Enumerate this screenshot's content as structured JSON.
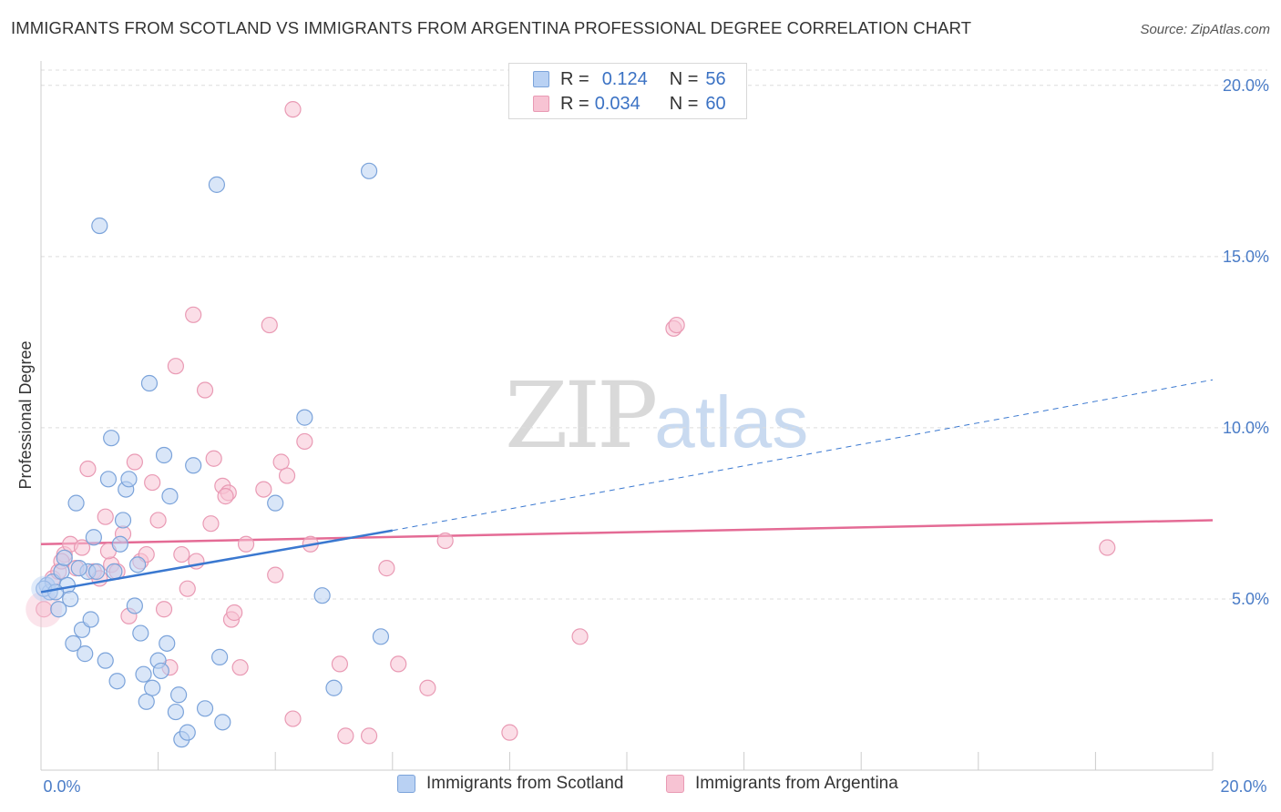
{
  "header": {
    "title": "IMMIGRANTS FROM SCOTLAND VS IMMIGRANTS FROM ARGENTINA PROFESSIONAL DEGREE CORRELATION CHART",
    "source": "Source: ZipAtlas.com"
  },
  "watermark": {
    "part1": "ZIP",
    "part2": "atlas"
  },
  "legend": {
    "scotland": {
      "r_label": "R =",
      "r_value": "0.124",
      "n_label": "N =",
      "n_value": "56"
    },
    "argentina": {
      "r_label": "R =",
      "r_value": "0.034",
      "n_label": "N =",
      "n_value": "60"
    }
  },
  "bottom_legend": {
    "scotland": "Immigrants from Scotland",
    "argentina": "Immigrants from Argentina"
  },
  "colors": {
    "scotland_fill": "#b9d1f3",
    "scotland_stroke": "#7ba3da",
    "scotland_line": "#3a78d0",
    "argentina_fill": "#f7c3d3",
    "argentina_stroke": "#e99ab4",
    "argentina_line": "#e46b95",
    "tick_label": "#4a7cc7",
    "grid": "#dddddd"
  },
  "chart_data": {
    "type": "scatter",
    "title": "IMMIGRANTS FROM SCOTLAND VS IMMIGRANTS FROM ARGENTINA PROFESSIONAL DEGREE CORRELATION CHART",
    "xlabel": "",
    "ylabel": "Professional Degree",
    "xlim": [
      0,
      20
    ],
    "ylim": [
      0,
      20.5
    ],
    "x_tick_labels": [
      "0.0%",
      "20.0%"
    ],
    "y_ticks": [
      5,
      10,
      15,
      20
    ],
    "y_tick_labels": [
      "5.0%",
      "10.0%",
      "15.0%",
      "20.0%"
    ],
    "grid": true,
    "legend_position": "top-center",
    "series": [
      {
        "name": "Immigrants from Scotland",
        "R": 0.124,
        "N": 56,
        "trend": {
          "x": [
            0,
            6
          ],
          "y": [
            5.2,
            7.0
          ],
          "dashed_extension": {
            "x": [
              6,
              20
            ],
            "y": [
              7.0,
              11.4
            ]
          }
        },
        "points": [
          [
            0.1,
            5.4
          ],
          [
            0.15,
            5.2
          ],
          [
            0.2,
            5.5
          ],
          [
            0.3,
            4.7
          ],
          [
            0.35,
            5.8
          ],
          [
            0.4,
            6.2
          ],
          [
            0.45,
            5.4
          ],
          [
            0.5,
            5.0
          ],
          [
            0.55,
            3.7
          ],
          [
            0.6,
            7.8
          ],
          [
            0.7,
            4.1
          ],
          [
            0.75,
            3.4
          ],
          [
            0.8,
            5.8
          ],
          [
            0.85,
            4.4
          ],
          [
            0.9,
            6.8
          ],
          [
            0.95,
            5.8
          ],
          [
            1.0,
            15.9
          ],
          [
            1.1,
            3.2
          ],
          [
            1.15,
            8.5
          ],
          [
            1.2,
            9.7
          ],
          [
            1.3,
            2.6
          ],
          [
            1.35,
            6.6
          ],
          [
            1.4,
            7.3
          ],
          [
            1.45,
            8.2
          ],
          [
            1.5,
            8.5
          ],
          [
            1.6,
            4.8
          ],
          [
            1.65,
            6.0
          ],
          [
            1.7,
            4.0
          ],
          [
            1.75,
            2.8
          ],
          [
            1.8,
            2.0
          ],
          [
            1.85,
            11.3
          ],
          [
            1.9,
            2.4
          ],
          [
            2.0,
            3.2
          ],
          [
            2.05,
            2.9
          ],
          [
            2.1,
            9.2
          ],
          [
            2.15,
            3.7
          ],
          [
            2.2,
            8.0
          ],
          [
            2.3,
            1.7
          ],
          [
            2.35,
            2.2
          ],
          [
            2.4,
            0.9
          ],
          [
            2.5,
            1.1
          ],
          [
            2.6,
            8.9
          ],
          [
            2.8,
            1.8
          ],
          [
            3.0,
            17.1
          ],
          [
            3.05,
            3.3
          ],
          [
            3.1,
            1.4
          ],
          [
            4.0,
            7.8
          ],
          [
            4.5,
            10.3
          ],
          [
            4.8,
            5.1
          ],
          [
            5.0,
            2.4
          ],
          [
            5.6,
            17.5
          ],
          [
            5.8,
            3.9
          ],
          [
            0.05,
            5.3
          ],
          [
            0.25,
            5.2
          ],
          [
            1.25,
            5.8
          ],
          [
            0.65,
            5.9
          ]
        ]
      },
      {
        "name": "Immigrants from Argentina",
        "R": 0.034,
        "N": 60,
        "trend": {
          "x": [
            0,
            20
          ],
          "y": [
            6.6,
            7.3
          ]
        },
        "points": [
          [
            0.05,
            4.7
          ],
          [
            0.2,
            5.6
          ],
          [
            0.3,
            5.8
          ],
          [
            0.4,
            6.3
          ],
          [
            0.5,
            6.6
          ],
          [
            0.6,
            5.9
          ],
          [
            0.7,
            6.5
          ],
          [
            0.8,
            8.8
          ],
          [
            0.9,
            5.8
          ],
          [
            1.0,
            5.6
          ],
          [
            1.1,
            7.4
          ],
          [
            1.2,
            6.0
          ],
          [
            1.3,
            5.8
          ],
          [
            1.4,
            6.9
          ],
          [
            1.5,
            4.5
          ],
          [
            1.6,
            9.0
          ],
          [
            1.7,
            6.1
          ],
          [
            1.8,
            6.3
          ],
          [
            1.9,
            8.4
          ],
          [
            2.0,
            7.3
          ],
          [
            2.1,
            4.7
          ],
          [
            2.2,
            3.0
          ],
          [
            2.3,
            11.8
          ],
          [
            2.4,
            6.3
          ],
          [
            2.5,
            5.3
          ],
          [
            2.6,
            13.3
          ],
          [
            2.65,
            6.1
          ],
          [
            2.8,
            11.1
          ],
          [
            2.9,
            7.2
          ],
          [
            2.95,
            9.1
          ],
          [
            3.1,
            8.3
          ],
          [
            3.2,
            8.1
          ],
          [
            3.25,
            4.4
          ],
          [
            3.3,
            4.6
          ],
          [
            3.4,
            3.0
          ],
          [
            3.5,
            6.6
          ],
          [
            3.8,
            8.2
          ],
          [
            3.9,
            13.0
          ],
          [
            4.0,
            5.7
          ],
          [
            4.1,
            9.0
          ],
          [
            4.2,
            8.6
          ],
          [
            4.3,
            1.5
          ],
          [
            4.5,
            9.6
          ],
          [
            4.6,
            6.6
          ],
          [
            4.3,
            19.3
          ],
          [
            5.1,
            3.1
          ],
          [
            5.2,
            1.0
          ],
          [
            5.6,
            1.0
          ],
          [
            5.9,
            5.9
          ],
          [
            6.1,
            3.1
          ],
          [
            6.6,
            2.4
          ],
          [
            6.9,
            6.7
          ],
          [
            8.0,
            1.1
          ],
          [
            9.2,
            3.9
          ],
          [
            10.8,
            12.9
          ],
          [
            10.85,
            13.0
          ],
          [
            18.2,
            6.5
          ],
          [
            0.35,
            6.1
          ],
          [
            1.15,
            6.4
          ],
          [
            3.15,
            8.0
          ]
        ]
      }
    ]
  },
  "axis": {
    "x_left_label": "0.0%",
    "x_right_label": "20.0%"
  }
}
